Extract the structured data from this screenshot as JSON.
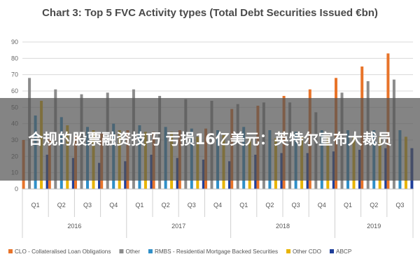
{
  "chart_data": {
    "type": "bar",
    "title": "Chart 3: Top 5 FVC Activity types (Total Debt Securities Issued €bn)",
    "ylim": [
      0,
      90
    ],
    "y_ticks": [
      0,
      10,
      20,
      30,
      40,
      50,
      60,
      70,
      80,
      90
    ],
    "grid": true,
    "legend_position": "bottom",
    "categories": [
      "Q1",
      "Q2",
      "Q3",
      "Q4",
      "Q1",
      "Q2",
      "Q3",
      "Q4",
      "Q1",
      "Q2",
      "Q3",
      "Q4",
      "Q1",
      "Q2",
      "Q3"
    ],
    "years": [
      {
        "label": "2016",
        "count": 4
      },
      {
        "label": "2017",
        "count": 4
      },
      {
        "label": "2018",
        "count": 4
      },
      {
        "label": "2019",
        "count": 3
      }
    ],
    "series": [
      {
        "name": "CLO - Collateralised Loan Obligations",
        "color": "#e8742a",
        "values": [
          30,
          31,
          33,
          34,
          36,
          35,
          36,
          37,
          49,
          51,
          57,
          61,
          68,
          75,
          83
        ]
      },
      {
        "name": "Other",
        "color": "#8c8c8c",
        "values": [
          68,
          61,
          58,
          59,
          61,
          57,
          55,
          54,
          52,
          53,
          53,
          47,
          59,
          66,
          67
        ]
      },
      {
        "name": "RMBS - Residential Mortgage Backed Securities",
        "color": "#2f8fc8",
        "values": [
          45,
          44,
          38,
          40,
          39,
          38,
          37,
          36,
          38,
          36,
          35,
          36,
          36,
          36,
          36
        ]
      },
      {
        "name": "Other CDO",
        "color": "#e8b400",
        "values": [
          54,
          39,
          36,
          36,
          35,
          35,
          32,
          33,
          31,
          31,
          32,
          32,
          32,
          32,
          32
        ]
      },
      {
        "name": "ABCP",
        "color": "#1f3f9a",
        "values": [
          21,
          19,
          16,
          17,
          21,
          19,
          18,
          17,
          21,
          22,
          22,
          23,
          24,
          25,
          25
        ]
      }
    ]
  },
  "overlay": {
    "headline": "合规的股票融资技巧 亏损16亿美元：英特尔宣布大裁员"
  }
}
